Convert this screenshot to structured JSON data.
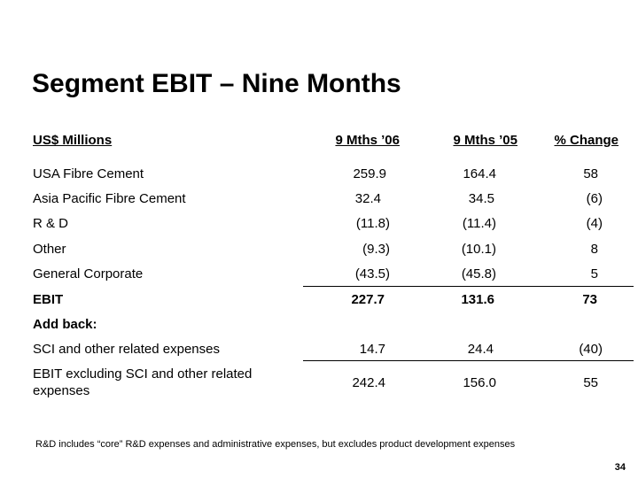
{
  "title": "Segment EBIT – Nine Months",
  "header": {
    "units": "US$ Millions",
    "col1": "9 Mths ’06",
    "col2": "9 Mths ’05",
    "col3": "% Change"
  },
  "rows": [
    {
      "label": "USA Fibre Cement",
      "v1": "259.9",
      "v2": "164.4",
      "v3": "58"
    },
    {
      "label": "Asia Pacific Fibre Cement",
      "v1": "32.4",
      "v2": "34.5",
      "v3": "(6)"
    },
    {
      "label": "R & D",
      "v1": "(11.8)",
      "v2": "(11.4)",
      "v3": "(4)"
    },
    {
      "label": "Other",
      "v1": "(9.3)",
      "v2": "(10.1)",
      "v3": "8"
    },
    {
      "label": "General Corporate",
      "v1": "(43.5)",
      "v2": "(45.8)",
      "v3": "5"
    }
  ],
  "ebit": {
    "label": "EBIT",
    "v1": "227.7",
    "v2": "131.6",
    "v3": "73"
  },
  "add_back": "Add back:",
  "sci": {
    "label": "SCI and other related expenses",
    "v1": "14.7",
    "v2": "24.4",
    "v3": "(40)"
  },
  "ebit_ex": {
    "label": "EBIT excluding SCI and other related expenses",
    "v1": "242.4",
    "v2": "156.0",
    "v3": "55"
  },
  "footnote": "R&D includes “core” R&D expenses and administrative expenses, but excludes product development expenses",
  "page_number": "34"
}
